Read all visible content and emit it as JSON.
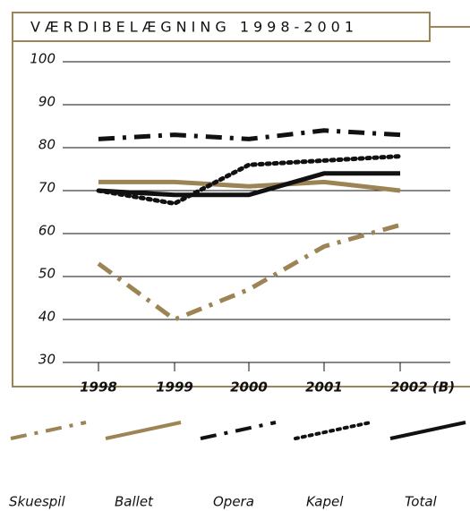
{
  "chart_data": {
    "type": "line",
    "title": "VÆRDIBELÆGNING 1998-2001",
    "categories": [
      "1998",
      "1999",
      "2000",
      "2001",
      "2002 (B)"
    ],
    "ylim": [
      30,
      100
    ],
    "yticks": [
      30,
      40,
      50,
      60,
      70,
      80,
      90,
      100
    ],
    "grid": true,
    "series": [
      {
        "name": "Skuespil",
        "color": "#9c8455",
        "dash": "dashdot",
        "values": [
          53,
          40,
          47,
          57,
          62
        ]
      },
      {
        "name": "Ballet",
        "color": "#9c8455",
        "dash": "solid",
        "values": [
          72,
          72,
          71,
          72,
          70
        ]
      },
      {
        "name": "Opera",
        "color": "#111111",
        "dash": "dashdot",
        "values": [
          82,
          83,
          82,
          84,
          83
        ]
      },
      {
        "name": "Kapel",
        "color": "#111111",
        "dash": "dotted",
        "values": [
          70,
          67,
          76,
          77,
          78
        ]
      },
      {
        "name": "Total",
        "color": "#111111",
        "dash": "solid",
        "values": [
          70,
          69,
          69,
          74,
          74
        ]
      }
    ]
  }
}
